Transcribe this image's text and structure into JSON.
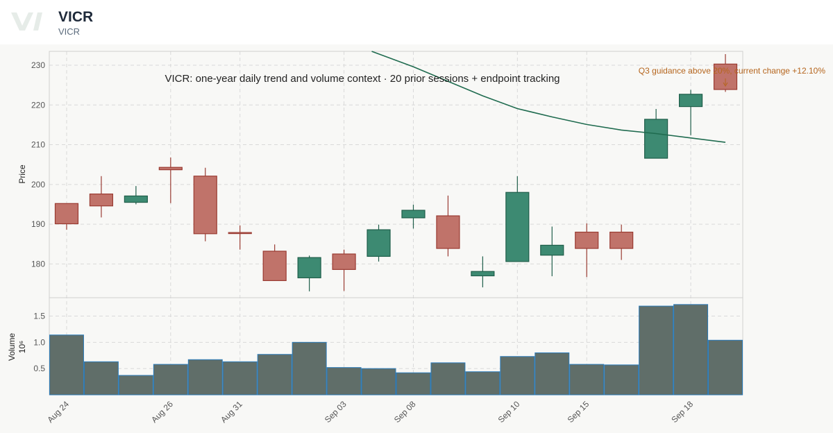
{
  "header": {
    "ticker": "VICR",
    "subtitle": "VICR",
    "logo_icon": "vi-logo-icon"
  },
  "colors": {
    "up": "#3d8a72",
    "up_stroke": "#1f5e4a",
    "down": "#c0736a",
    "down_stroke": "#9a3b32",
    "ma": "#1f6b4f",
    "volume": "#606e69",
    "volume_stroke": "#2b7bb9",
    "annotation": "#b5651d"
  },
  "chart_data": {
    "type": "candlestick",
    "title": "VICR: one-year daily trend and volume context · 20 prior sessions + endpoint tracking",
    "ylabel": "Price",
    "volume_label": "Volume",
    "volume_unit": "10⁶",
    "price_ylim": [
      171.5,
      233.5
    ],
    "price_yticks": [
      180,
      190,
      200,
      210,
      220,
      230
    ],
    "volume_ylim": [
      0,
      1.85
    ],
    "volume_yticks": [
      0.5,
      1.0,
      1.5
    ],
    "volume_ytick_labels": [
      "0.5",
      "1.0",
      "1.5"
    ],
    "x_tick_labels": [
      {
        "index": 0,
        "label": "Aug 24"
      },
      {
        "index": 3,
        "label": "Aug 26"
      },
      {
        "index": 5,
        "label": "Aug 31"
      },
      {
        "index": 8,
        "label": "Sep 03"
      },
      {
        "index": 10,
        "label": "Sep 08"
      },
      {
        "index": 13,
        "label": "Sep 10"
      },
      {
        "index": 15,
        "label": "Sep 15"
      },
      {
        "index": 18,
        "label": "Sep 18"
      }
    ],
    "candles": [
      {
        "open": 195.2,
        "high": 195.2,
        "low": 188.6,
        "close": 190.1,
        "volume": 1.14
      },
      {
        "open": 197.6,
        "high": 202.1,
        "low": 191.7,
        "close": 194.6,
        "volume": 0.63
      },
      {
        "open": 195.5,
        "high": 199.6,
        "low": 195.0,
        "close": 197.1,
        "volume": 0.37
      },
      {
        "open": 204.3,
        "high": 206.8,
        "low": 195.3,
        "close": 203.7,
        "volume": 0.58
      },
      {
        "open": 202.1,
        "high": 204.2,
        "low": 185.7,
        "close": 187.6,
        "volume": 0.67
      },
      {
        "open": 187.9,
        "high": 189.7,
        "low": 183.6,
        "close": 187.7,
        "volume": 0.63
      },
      {
        "open": 183.2,
        "high": 184.9,
        "low": 175.7,
        "close": 175.8,
        "volume": 0.77
      },
      {
        "open": 176.5,
        "high": 182.1,
        "low": 173.1,
        "close": 181.6,
        "volume": 1.0
      },
      {
        "open": 182.5,
        "high": 183.6,
        "low": 173.2,
        "close": 178.6,
        "volume": 0.52
      },
      {
        "open": 181.9,
        "high": 189.9,
        "low": 180.6,
        "close": 188.6,
        "volume": 0.5
      },
      {
        "open": 191.6,
        "high": 194.9,
        "low": 188.9,
        "close": 193.5,
        "volume": 0.42
      },
      {
        "open": 192.1,
        "high": 197.2,
        "low": 181.9,
        "close": 183.9,
        "volume": 0.61
      },
      {
        "open": 177.0,
        "high": 181.9,
        "low": 174.1,
        "close": 178.1,
        "volume": 0.44
      },
      {
        "open": 180.6,
        "high": 202.1,
        "low": 180.6,
        "close": 198.0,
        "volume": 0.73
      },
      {
        "open": 182.2,
        "high": 189.4,
        "low": 176.9,
        "close": 184.7,
        "volume": 0.8
      },
      {
        "open": 188.0,
        "high": 190.2,
        "low": 176.7,
        "close": 183.9,
        "volume": 0.58
      },
      {
        "open": 188.0,
        "high": 189.9,
        "low": 181.0,
        "close": 183.9,
        "volume": 0.57
      },
      {
        "open": 206.6,
        "high": 219.0,
        "low": 206.6,
        "close": 216.4,
        "volume": 1.69
      },
      {
        "open": 219.6,
        "high": 223.8,
        "low": 212.4,
        "close": 222.7,
        "volume": 1.72
      },
      {
        "open": 230.3,
        "high": 232.8,
        "low": 223.3,
        "close": 223.9,
        "volume": 1.04
      }
    ],
    "moving_average": {
      "name": "",
      "points": [
        {
          "index": 8.8,
          "value": 233.5
        },
        {
          "index": 10.0,
          "value": 229.6
        },
        {
          "index": 12.0,
          "value": 222.3
        },
        {
          "index": 13.0,
          "value": 219.1
        },
        {
          "index": 14.0,
          "value": 217.0
        },
        {
          "index": 15.0,
          "value": 215.1
        },
        {
          "index": 16.0,
          "value": 213.7
        },
        {
          "index": 17.0,
          "value": 212.8
        },
        {
          "index": 18.0,
          "value": 211.7
        },
        {
          "index": 19.0,
          "value": 210.6
        }
      ]
    },
    "annotation": {
      "text": "Q3 guidance above 20%, current change +12.10%",
      "index": 19,
      "value": 232.0
    },
    "grid": true
  }
}
